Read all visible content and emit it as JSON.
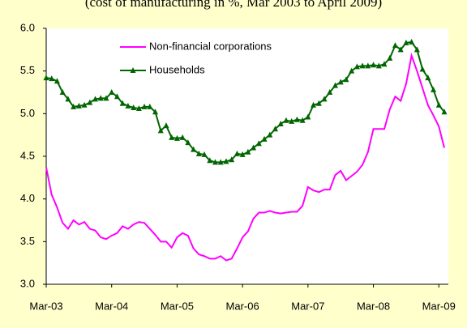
{
  "chart_data": {
    "type": "line",
    "subtitle": "(cost of manufacturing in %, Mar 2003 to April 2009)",
    "categories": [
      "Mar-03",
      null,
      null,
      null,
      null,
      null,
      null,
      null,
      null,
      null,
      null,
      null,
      "Mar-04",
      null,
      null,
      null,
      null,
      null,
      null,
      null,
      null,
      null,
      null,
      null,
      "Mar-05",
      null,
      null,
      null,
      null,
      null,
      null,
      null,
      null,
      null,
      null,
      null,
      "Mar-06",
      null,
      null,
      null,
      null,
      null,
      null,
      null,
      null,
      null,
      null,
      null,
      "Mar-07",
      null,
      null,
      null,
      null,
      null,
      null,
      null,
      null,
      null,
      null,
      null,
      "Mar-08",
      null,
      null,
      null,
      null,
      null,
      null,
      null,
      null,
      null,
      null,
      null,
      "Mar-09",
      null
    ],
    "series": [
      {
        "name": "Non-financial corporations",
        "color": "#ff00ff",
        "marker": "none",
        "values": [
          4.37,
          4.05,
          3.9,
          3.72,
          3.65,
          3.75,
          3.7,
          3.73,
          3.65,
          3.63,
          3.55,
          3.53,
          3.57,
          3.6,
          3.68,
          3.65,
          3.7,
          3.73,
          3.72,
          3.65,
          3.58,
          3.5,
          3.5,
          3.43,
          3.55,
          3.6,
          3.57,
          3.42,
          3.35,
          3.33,
          3.3,
          3.3,
          3.33,
          3.28,
          3.3,
          3.42,
          3.55,
          3.62,
          3.77,
          3.84,
          3.84,
          3.86,
          3.84,
          3.83,
          3.84,
          3.85,
          3.85,
          3.92,
          4.14,
          4.1,
          4.08,
          4.11,
          4.11,
          4.28,
          4.33,
          4.22,
          4.27,
          4.32,
          4.4,
          4.55,
          4.82,
          4.82,
          4.82,
          5.05,
          5.2,
          5.15,
          5.35,
          5.68,
          5.5,
          5.3,
          5.1,
          4.98,
          4.85,
          4.6
        ]
      },
      {
        "name": "Households",
        "color": "#006600",
        "marker": "triangle",
        "values": [
          5.42,
          5.41,
          5.38,
          5.25,
          5.17,
          5.08,
          5.09,
          5.1,
          5.13,
          5.17,
          5.18,
          5.18,
          5.25,
          5.2,
          5.12,
          5.09,
          5.07,
          5.06,
          5.08,
          5.08,
          5.02,
          4.8,
          4.86,
          4.72,
          4.71,
          4.72,
          4.66,
          4.58,
          4.53,
          4.52,
          4.45,
          4.43,
          4.43,
          4.44,
          4.46,
          4.53,
          4.52,
          4.55,
          4.6,
          4.65,
          4.7,
          4.75,
          4.82,
          4.88,
          4.92,
          4.91,
          4.93,
          4.92,
          4.96,
          5.1,
          5.12,
          5.17,
          5.25,
          5.33,
          5.37,
          5.4,
          5.5,
          5.55,
          5.56,
          5.56,
          5.57,
          5.56,
          5.58,
          5.65,
          5.8,
          5.75,
          5.83,
          5.84,
          5.75,
          5.52,
          5.42,
          5.28,
          5.1,
          5.02
        ]
      }
    ],
    "ylim": [
      3.0,
      6.0
    ],
    "yticks": [
      {
        "value": 3.0,
        "label": "3.0"
      },
      {
        "value": 3.5,
        "label": "3.5"
      },
      {
        "value": 4.0,
        "label": "4.0"
      },
      {
        "value": 4.5,
        "label": "4.5"
      },
      {
        "value": 5.0,
        "label": "5.0"
      },
      {
        "value": 5.5,
        "label": "5.5"
      },
      {
        "value": 6.0,
        "label": "6.0"
      }
    ],
    "grid": false,
    "legend": "top-left",
    "background": "#ffffcc",
    "plot_background": "#ffffff"
  }
}
